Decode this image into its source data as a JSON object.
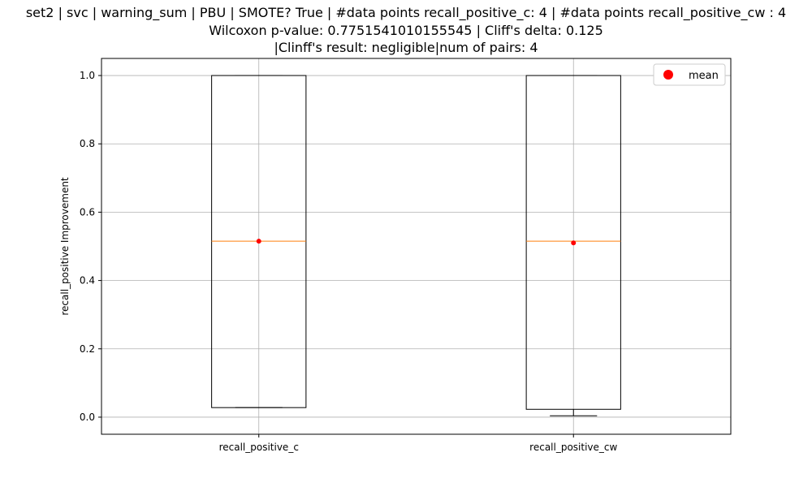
{
  "chart_data": {
    "type": "box",
    "title_lines": [
      "set2 | svc | warning_sum | PBU | SMOTE? True | #data points recall_positive_c: 4 | #data points recall_positive_cw : 4",
      "Wilcoxon p-value: 0.7751541010155545 | Cliff's delta: 0.125",
      "|Clinff's result: negligible|num of pairs: 4"
    ],
    "xlabel": "",
    "ylabel": "recall_positive Improvement",
    "ylim": [
      -0.05,
      1.05
    ],
    "yticks": [
      0.0,
      0.2,
      0.4,
      0.6,
      0.8,
      1.0
    ],
    "ytick_labels": [
      "0.0",
      "0.2",
      "0.4",
      "0.6",
      "0.8",
      "1.0"
    ],
    "grid": true,
    "legend": {
      "position": "top-right",
      "entries": [
        {
          "label": "mean",
          "marker": "circle",
          "color": "#ff0000"
        }
      ]
    },
    "colors": {
      "box": "#000000",
      "median": "#ff7f0e",
      "mean": "#ff0000",
      "grid": "#b0b0b0"
    },
    "series": [
      {
        "name": "recall_positive_c",
        "whisker_low": 0.028,
        "q1": 0.028,
        "median": 0.515,
        "q3": 1.0,
        "whisker_high": 1.0,
        "mean": 0.515
      },
      {
        "name": "recall_positive_cw",
        "whisker_low": 0.004,
        "q1": 0.023,
        "median": 0.515,
        "q3": 1.0,
        "whisker_high": 1.0,
        "mean": 0.51
      }
    ]
  }
}
